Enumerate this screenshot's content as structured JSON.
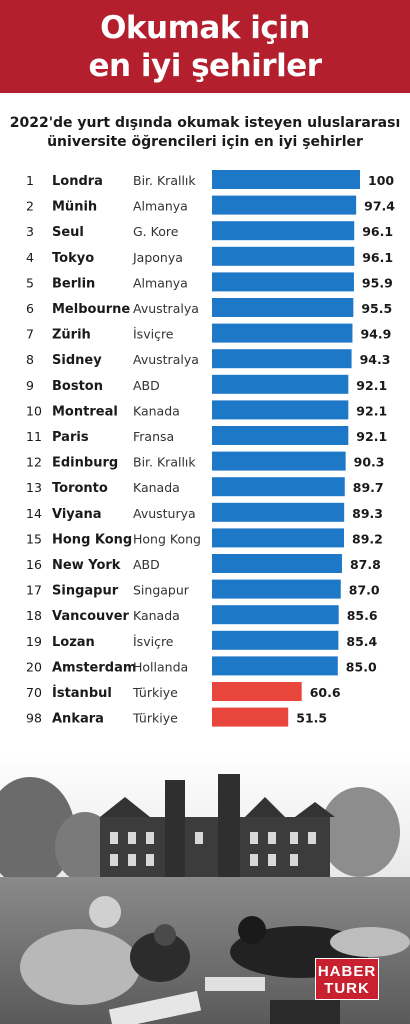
{
  "header": {
    "title_line1": "Okumak için",
    "title_line2": "en iyi şehirler"
  },
  "subtitle": {
    "line1": "2022'de yurt dışında okumak isteyen uluslararası",
    "line2": "üniversite öğrencileri için en iyi şehirler"
  },
  "colors": {
    "header_bg": "#b41f2e",
    "bar_blue": "#1e78c8",
    "bar_red": "#e8463c"
  },
  "chart_data": {
    "type": "bar",
    "orientation": "horizontal",
    "xlim": [
      0,
      100
    ],
    "rows": [
      {
        "rank": "1",
        "city": "Londra",
        "country": "Bir. Krallık",
        "value": 100,
        "label": "100",
        "highlight": false
      },
      {
        "rank": "2",
        "city": "Münih",
        "country": "Almanya",
        "value": 97.4,
        "label": "97.4",
        "highlight": false
      },
      {
        "rank": "3",
        "city": "Seul",
        "country": "G. Kore",
        "value": 96.1,
        "label": "96.1",
        "highlight": false
      },
      {
        "rank": "4",
        "city": "Tokyo",
        "country": "Japonya",
        "value": 96.1,
        "label": "96.1",
        "highlight": false
      },
      {
        "rank": "5",
        "city": "Berlin",
        "country": "Almanya",
        "value": 95.9,
        "label": "95.9",
        "highlight": false
      },
      {
        "rank": "6",
        "city": "Melbourne",
        "country": "Avustralya",
        "value": 95.5,
        "label": "95.5",
        "highlight": false
      },
      {
        "rank": "7",
        "city": "Zürih",
        "country": "İsviçre",
        "value": 94.9,
        "label": "94.9",
        "highlight": false
      },
      {
        "rank": "8",
        "city": "Sidney",
        "country": "Avustralya",
        "value": 94.3,
        "label": "94.3",
        "highlight": false
      },
      {
        "rank": "9",
        "city": "Boston",
        "country": "ABD",
        "value": 92.1,
        "label": "92.1",
        "highlight": false
      },
      {
        "rank": "10",
        "city": "Montreal",
        "country": "Kanada",
        "value": 92.1,
        "label": "92.1",
        "highlight": false
      },
      {
        "rank": "11",
        "city": "Paris",
        "country": "Fransa",
        "value": 92.1,
        "label": "92.1",
        "highlight": false
      },
      {
        "rank": "12",
        "city": "Edinburg",
        "country": "Bir. Krallık",
        "value": 90.3,
        "label": "90.3",
        "highlight": false
      },
      {
        "rank": "13",
        "city": "Toronto",
        "country": "Kanada",
        "value": 89.7,
        "label": "89.7",
        "highlight": false
      },
      {
        "rank": "14",
        "city": "Viyana",
        "country": "Avusturya",
        "value": 89.3,
        "label": "89.3",
        "highlight": false
      },
      {
        "rank": "15",
        "city": "Hong Kong",
        "country": "Hong Kong",
        "value": 89.2,
        "label": "89.2",
        "highlight": false
      },
      {
        "rank": "16",
        "city": "New York",
        "country": "ABD",
        "value": 87.8,
        "label": "87.8",
        "highlight": false
      },
      {
        "rank": "17",
        "city": "Singapur",
        "country": "Singapur",
        "value": 87.0,
        "label": "87.0",
        "highlight": false
      },
      {
        "rank": "18",
        "city": "Vancouver",
        "country": "Kanada",
        "value": 85.6,
        "label": "85.6",
        "highlight": false
      },
      {
        "rank": "19",
        "city": "Lozan",
        "country": "İsviçre",
        "value": 85.4,
        "label": "85.4",
        "highlight": false
      },
      {
        "rank": "20",
        "city": "Amsterdam",
        "country": "Hollanda",
        "value": 85.0,
        "label": "85.0",
        "highlight": false
      },
      {
        "rank": "70",
        "city": "İstanbul",
        "country": "Türkiye",
        "value": 60.6,
        "label": "60.6",
        "highlight": true
      },
      {
        "rank": "98",
        "city": "Ankara",
        "country": "Türkiye",
        "value": 51.5,
        "label": "51.5",
        "highlight": true
      }
    ]
  },
  "photo": {
    "description_icon": "campus-lawn-students-photo"
  },
  "logo": {
    "line1": "HABER",
    "line2": "TURK"
  }
}
